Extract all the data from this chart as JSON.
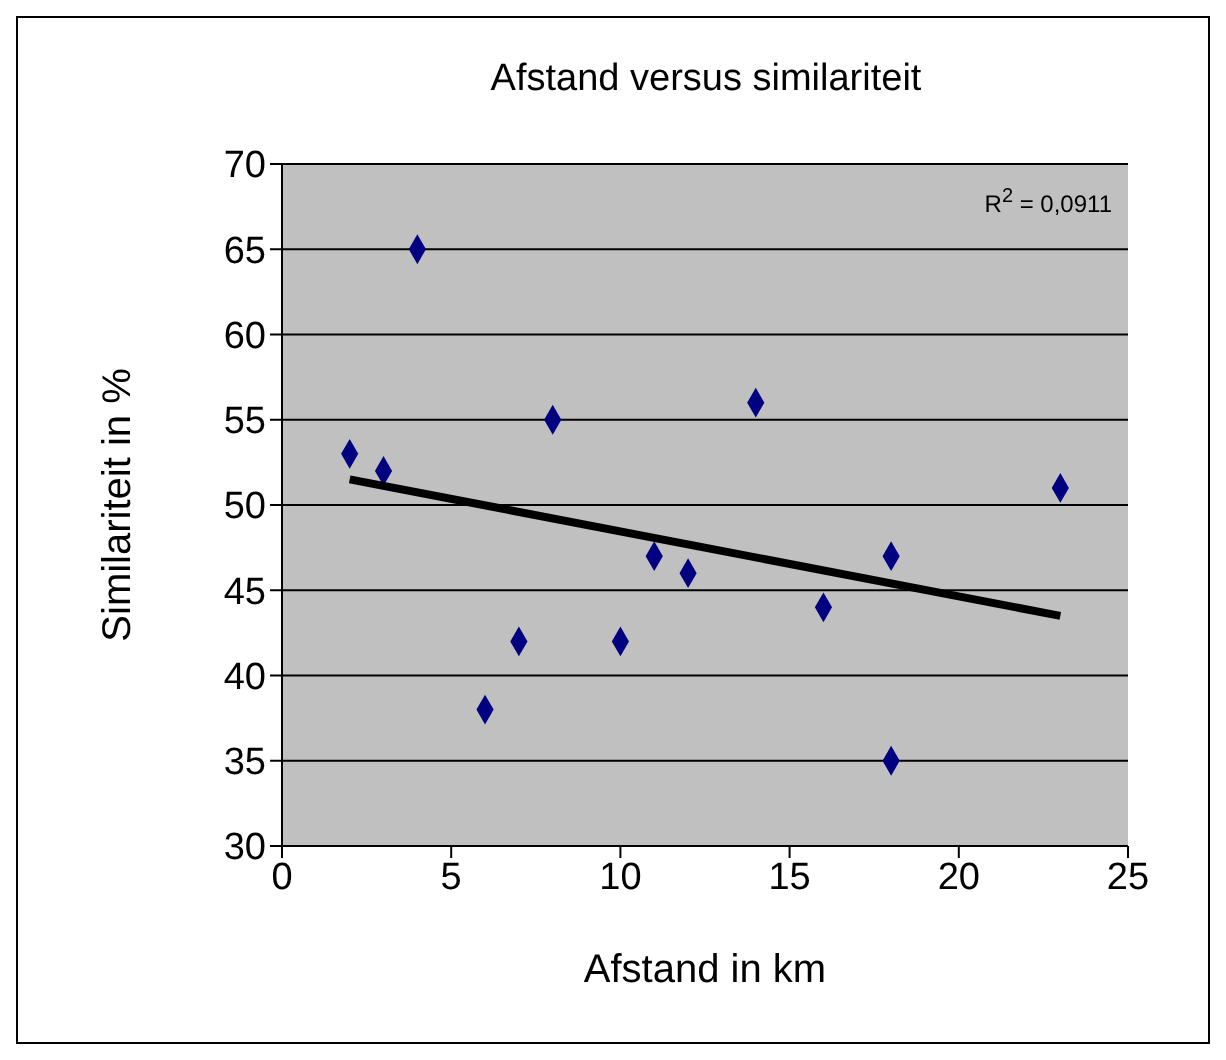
{
  "chart_data": {
    "type": "scatter",
    "title": "Afstand versus similariteit",
    "xlabel": "Afstand in km",
    "ylabel": "Similariteit in %",
    "annotations": [
      "R$^{2}$ = 0,0911"
    ],
    "marker": "diamond",
    "grid": "y",
    "legend": false,
    "xlim": [
      0,
      25
    ],
    "xticks": [
      0,
      5,
      10,
      15,
      20,
      25
    ],
    "ylim": [
      30,
      70
    ],
    "yticks": [
      30,
      35,
      40,
      45,
      50,
      55,
      60,
      65,
      70
    ],
    "series": [
      {
        "color": "#000080",
        "x": [
          2,
          3,
          4,
          6,
          7,
          8,
          10,
          11,
          12,
          14,
          16,
          18,
          18,
          23
        ],
        "values": [
          53,
          52,
          65,
          38,
          42,
          55,
          42,
          47,
          46,
          56,
          44,
          47,
          35,
          51
        ]
      },
      {
        "type": "line",
        "marker": "none",
        "color": "#000000",
        "x": [
          2,
          23
        ],
        "values": [
          51.5,
          43.5
        ]
      }
    ]
  }
}
